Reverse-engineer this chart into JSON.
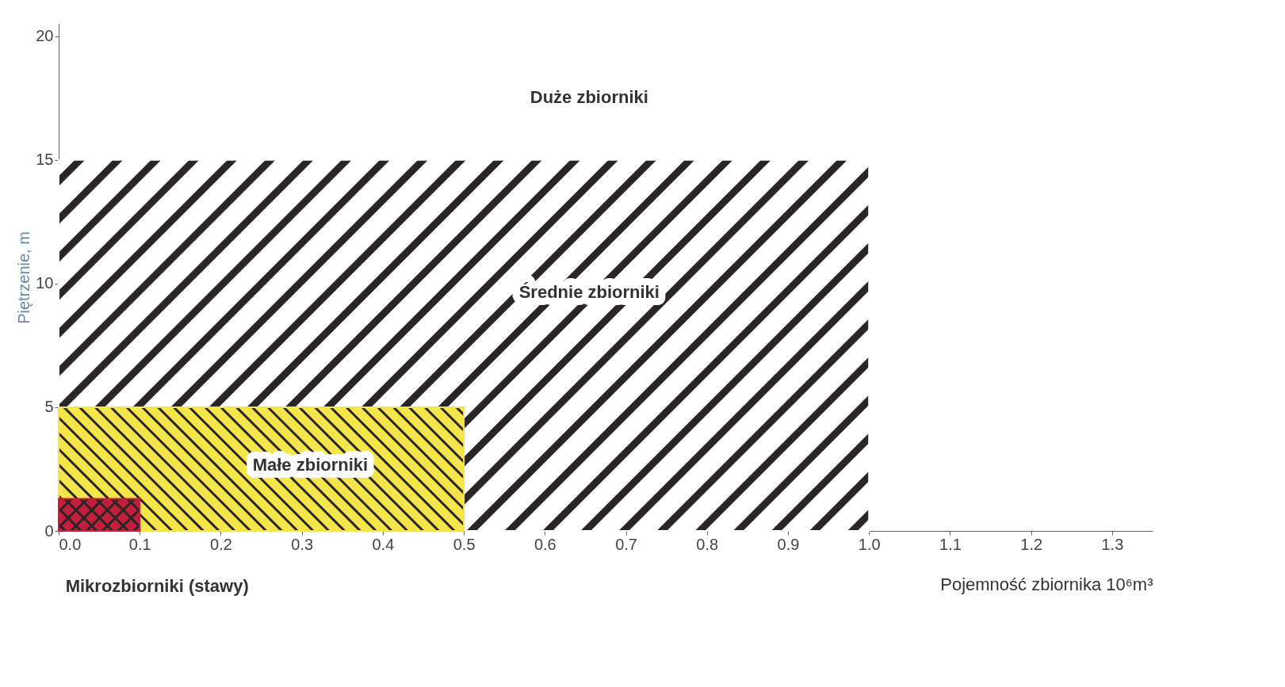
{
  "chart_data": {
    "type": "area",
    "xlabel": "Pojemność zbiornika 10⁶m³",
    "ylabel": "Piętrzenie, m",
    "xlim": [
      0,
      1.35
    ],
    "ylim": [
      0,
      20.5
    ],
    "xticks": [
      {
        "value": 0,
        "label": "0.0"
      },
      0.1,
      0.2,
      0.3,
      0.4,
      0.5,
      0.6,
      0.7,
      0.8,
      0.9,
      {
        "value": 1,
        "label": "1.0"
      },
      1.1,
      1.2,
      1.3
    ],
    "yticks": [
      0,
      5,
      10,
      15,
      20
    ],
    "grid": false,
    "series": [
      {
        "color": "#ffffff",
        "x": [
          0,
          1.0
        ],
        "values": [
          15,
          15
        ]
      },
      {
        "color": "#f4e64a",
        "x": [
          0,
          0.5
        ],
        "values": [
          5,
          5
        ]
      },
      {
        "color": "#c41e3a",
        "x": [
          0,
          0.1
        ],
        "values": [
          1.3,
          1.3
        ]
      }
    ],
    "annotations": [
      "Duże zbiorniki",
      "Średnie zbiorniki",
      "Małe zbiorniki",
      "Mikrozbiorniki (stawy)"
    ]
  }
}
